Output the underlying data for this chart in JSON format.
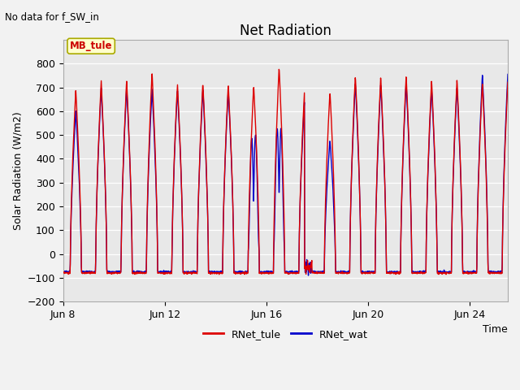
{
  "title": "Net Radiation",
  "subtitle": "No data for f_SW_in",
  "ylabel": "Solar Radiation (W/m2)",
  "xlabel": "Time",
  "ylim": [
    -200,
    900
  ],
  "yticks": [
    -200,
    -100,
    0,
    100,
    200,
    300,
    400,
    500,
    600,
    700,
    800
  ],
  "xtick_labels": [
    "Jun 8",
    "Jun 12",
    "Jun 16",
    "Jun 20",
    "Jun 24"
  ],
  "xtick_positions": [
    0,
    4,
    8,
    12,
    16
  ],
  "legend_entries": [
    "RNet_tule",
    "RNet_wat"
  ],
  "color_tule": "#dd0000",
  "color_wat": "#0000cc",
  "annotation_text": "MB_tule",
  "fig_bg_color": "#f2f2f2",
  "plot_bg_color": "#e8e8e8",
  "linewidth": 1.0,
  "n_days": 17.5,
  "pts_per_day": 96
}
